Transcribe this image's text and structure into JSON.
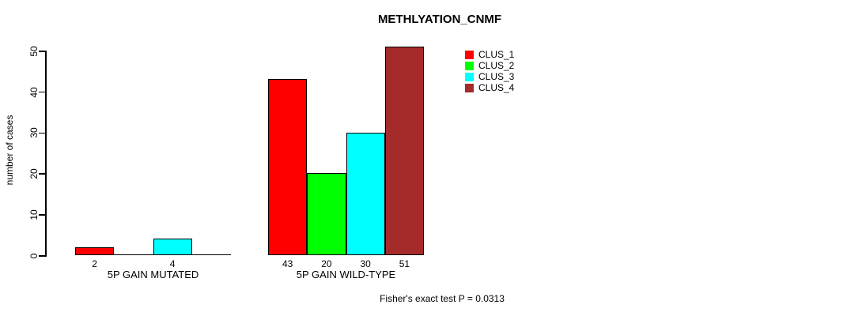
{
  "chart_data": {
    "type": "bar",
    "title": "METHLYATION_CNMF",
    "ylabel": "number of cases",
    "xlabel": "",
    "ylim": [
      0,
      50
    ],
    "y_ticks": [
      0,
      10,
      20,
      30,
      40,
      50
    ],
    "grid": false,
    "legend_position": "top-right",
    "categories": [
      "5P GAIN MUTATED",
      "5P GAIN WILD-TYPE"
    ],
    "series": [
      {
        "name": "CLUS_1",
        "color": "#FF0000",
        "values": [
          2,
          43
        ]
      },
      {
        "name": "CLUS_2",
        "color": "#00FF00",
        "values": [
          0,
          20
        ]
      },
      {
        "name": "CLUS_3",
        "color": "#00FFFF",
        "values": [
          4,
          30
        ]
      },
      {
        "name": "CLUS_4",
        "color": "#A52A2A",
        "values": [
          0,
          51
        ]
      }
    ],
    "bar_value_labels": [
      [
        "2",
        "",
        "4",
        ""
      ],
      [
        "43",
        "20",
        "30",
        "51"
      ]
    ],
    "footnote": "Fisher's exact test P = 0.0313"
  }
}
